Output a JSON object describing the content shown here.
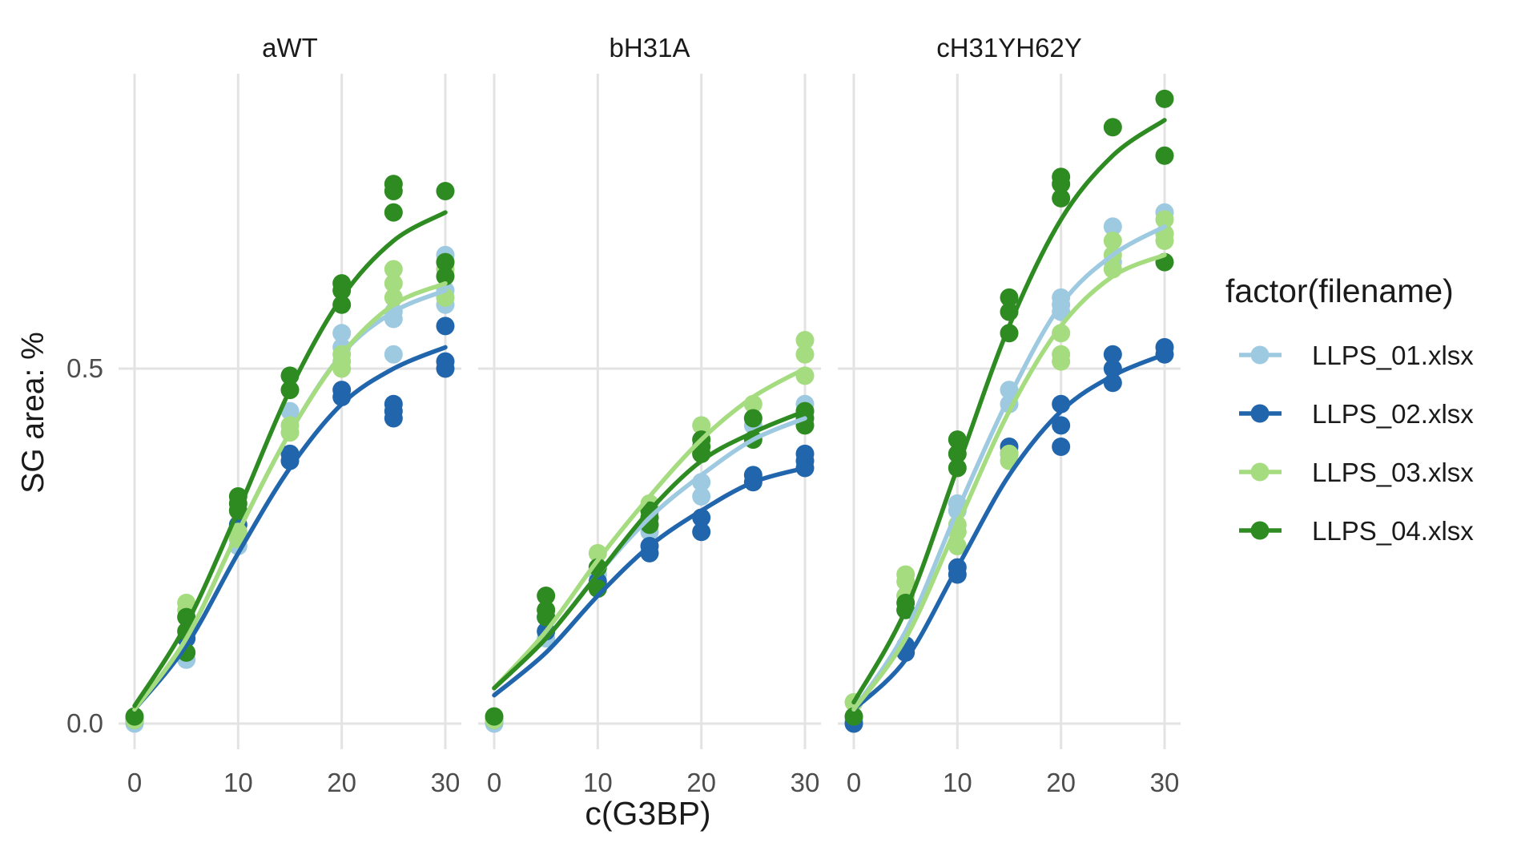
{
  "chart_data": {
    "type": "scatter",
    "facet_titles": [
      "aWT",
      "bH31A",
      "cH31YH62Y"
    ],
    "xlabel": "c(G3BP)",
    "ylabel": "SG area: %",
    "xlim": [
      0,
      30
    ],
    "ylim": [
      0,
      0.88
    ],
    "x_ticks": [
      0,
      10,
      20,
      30
    ],
    "x_tick_labels": [
      "0",
      "10",
      "20",
      "30"
    ],
    "y_ticks": [
      0,
      0.5
    ],
    "y_tick_labels": [
      "0.0",
      "0.5"
    ],
    "grid": true,
    "legend_title": "factor(filename)",
    "legend_position": "right",
    "series": [
      {
        "name": "LLPS_01.xlsx",
        "color": "#9ecae1"
      },
      {
        "name": "LLPS_02.xlsx",
        "color": "#2166ac"
      },
      {
        "name": "LLPS_03.xlsx",
        "color": "#a6dc80"
      },
      {
        "name": "LLPS_04.xlsx",
        "color": "#2e8b22"
      }
    ],
    "panels": [
      {
        "title": "aWT",
        "points": [
          [
            [
              0,
              0
            ],
            [
              0,
              0.005
            ],
            [
              5,
              0.09
            ],
            [
              5,
              0.12
            ],
            [
              10,
              0.25
            ],
            [
              10,
              0.27
            ],
            [
              15,
              0.38
            ],
            [
              15,
              0.44
            ],
            [
              20,
              0.53
            ],
            [
              20,
              0.55
            ],
            [
              25,
              0.52
            ],
            [
              25,
              0.57
            ],
            [
              25,
              0.58
            ],
            [
              30,
              0.59
            ],
            [
              30,
              0.61
            ],
            [
              30,
              0.66
            ]
          ],
          [
            [
              0,
              0.005
            ],
            [
              5,
              0.12
            ],
            [
              10,
              0.28
            ],
            [
              15,
              0.37
            ],
            [
              15,
              0.38
            ],
            [
              20,
              0.46
            ],
            [
              20,
              0.47
            ],
            [
              25,
              0.43
            ],
            [
              25,
              0.44
            ],
            [
              25,
              0.45
            ],
            [
              30,
              0.5
            ],
            [
              30,
              0.51
            ],
            [
              30,
              0.56
            ]
          ],
          [
            [
              0,
              0.005
            ],
            [
              5,
              0.16
            ],
            [
              5,
              0.17
            ],
            [
              10,
              0.26
            ],
            [
              10,
              0.27
            ],
            [
              15,
              0.41
            ],
            [
              15,
              0.42
            ],
            [
              20,
              0.5
            ],
            [
              20,
              0.51
            ],
            [
              20,
              0.52
            ],
            [
              25,
              0.6
            ],
            [
              25,
              0.62
            ],
            [
              25,
              0.64
            ],
            [
              30,
              0.6
            ],
            [
              30,
              0.64
            ],
            [
              30,
              0.65
            ]
          ],
          [
            [
              0,
              0.01
            ],
            [
              5,
              0.1
            ],
            [
              5,
              0.13
            ],
            [
              5,
              0.15
            ],
            [
              10,
              0.3
            ],
            [
              10,
              0.31
            ],
            [
              10,
              0.32
            ],
            [
              15,
              0.47
            ],
            [
              15,
              0.49
            ],
            [
              20,
              0.59
            ],
            [
              20,
              0.61
            ],
            [
              20,
              0.62
            ],
            [
              25,
              0.72
            ],
            [
              25,
              0.75
            ],
            [
              25,
              0.76
            ],
            [
              30,
              0.63
            ],
            [
              30,
              0.65
            ],
            [
              30,
              0.75
            ]
          ]
        ],
        "curves": [
          [
            [
              0,
              0.02
            ],
            [
              5,
              0.12
            ],
            [
              10,
              0.27
            ],
            [
              15,
              0.41
            ],
            [
              20,
              0.52
            ],
            [
              25,
              0.58
            ],
            [
              30,
              0.61
            ]
          ],
          [
            [
              0,
              0.02
            ],
            [
              5,
              0.11
            ],
            [
              10,
              0.24
            ],
            [
              15,
              0.36
            ],
            [
              20,
              0.45
            ],
            [
              25,
              0.5
            ],
            [
              30,
              0.53
            ]
          ],
          [
            [
              0,
              0.02
            ],
            [
              5,
              0.12
            ],
            [
              10,
              0.27
            ],
            [
              15,
              0.41
            ],
            [
              20,
              0.52
            ],
            [
              25,
              0.59
            ],
            [
              30,
              0.62
            ]
          ],
          [
            [
              0,
              0.025
            ],
            [
              5,
              0.14
            ],
            [
              10,
              0.3
            ],
            [
              15,
              0.47
            ],
            [
              20,
              0.6
            ],
            [
              25,
              0.68
            ],
            [
              30,
              0.72
            ]
          ]
        ]
      },
      {
        "title": "bH31A",
        "points": [
          [
            [
              0,
              0
            ],
            [
              5,
              0.12
            ],
            [
              10,
              0.21
            ],
            [
              15,
              0.27
            ],
            [
              20,
              0.32
            ],
            [
              20,
              0.34
            ],
            [
              25,
              0.42
            ],
            [
              25,
              0.43
            ],
            [
              30,
              0.44
            ],
            [
              30,
              0.45
            ]
          ],
          [
            [
              0,
              0.005
            ],
            [
              5,
              0.13
            ],
            [
              5,
              0.15
            ],
            [
              10,
              0.2
            ],
            [
              15,
              0.24
            ],
            [
              15,
              0.25
            ],
            [
              20,
              0.27
            ],
            [
              20,
              0.29
            ],
            [
              25,
              0.34
            ],
            [
              25,
              0.35
            ],
            [
              30,
              0.36
            ],
            [
              30,
              0.37
            ],
            [
              30,
              0.38
            ]
          ],
          [
            [
              0,
              0.005
            ],
            [
              5,
              0.16
            ],
            [
              10,
              0.24
            ],
            [
              15,
              0.3
            ],
            [
              15,
              0.31
            ],
            [
              20,
              0.38
            ],
            [
              20,
              0.42
            ],
            [
              25,
              0.45
            ],
            [
              30,
              0.49
            ],
            [
              30,
              0.52
            ],
            [
              30,
              0.54
            ]
          ],
          [
            [
              0,
              0.01
            ],
            [
              5,
              0.15
            ],
            [
              5,
              0.16
            ],
            [
              5,
              0.18
            ],
            [
              10,
              0.19
            ],
            [
              10,
              0.22
            ],
            [
              15,
              0.28
            ],
            [
              15,
              0.29
            ],
            [
              15,
              0.3
            ],
            [
              20,
              0.38
            ],
            [
              20,
              0.39
            ],
            [
              20,
              0.4
            ],
            [
              25,
              0.4
            ],
            [
              25,
              0.43
            ],
            [
              30,
              0.42
            ],
            [
              30,
              0.43
            ],
            [
              30,
              0.44
            ]
          ]
        ],
        "curves": [
          [
            [
              0,
              0.05
            ],
            [
              5,
              0.12
            ],
            [
              10,
              0.21
            ],
            [
              15,
              0.29
            ],
            [
              20,
              0.35
            ],
            [
              25,
              0.4
            ],
            [
              30,
              0.43
            ]
          ],
          [
            [
              0,
              0.04
            ],
            [
              5,
              0.1
            ],
            [
              10,
              0.18
            ],
            [
              15,
              0.25
            ],
            [
              20,
              0.3
            ],
            [
              25,
              0.34
            ],
            [
              30,
              0.36
            ]
          ],
          [
            [
              0,
              0.05
            ],
            [
              5,
              0.13
            ],
            [
              10,
              0.23
            ],
            [
              15,
              0.32
            ],
            [
              20,
              0.4
            ],
            [
              25,
              0.46
            ],
            [
              30,
              0.5
            ]
          ],
          [
            [
              0,
              0.05
            ],
            [
              5,
              0.12
            ],
            [
              10,
              0.21
            ],
            [
              15,
              0.3
            ],
            [
              20,
              0.37
            ],
            [
              25,
              0.41
            ],
            [
              30,
              0.44
            ]
          ]
        ]
      },
      {
        "title": "cH31YH62Y",
        "points": [
          [
            [
              0,
              0
            ],
            [
              0,
              0.005
            ],
            [
              5,
              0.16
            ],
            [
              5,
              0.18
            ],
            [
              10,
              0.3
            ],
            [
              10,
              0.31
            ],
            [
              15,
              0.45
            ],
            [
              15,
              0.47
            ],
            [
              20,
              0.58
            ],
            [
              20,
              0.59
            ],
            [
              20,
              0.6
            ],
            [
              25,
              0.65
            ],
            [
              25,
              0.7
            ],
            [
              30,
              0.69
            ],
            [
              30,
              0.72
            ]
          ],
          [
            [
              0,
              0
            ],
            [
              5,
              0.1
            ],
            [
              5,
              0.11
            ],
            [
              10,
              0.21
            ],
            [
              10,
              0.22
            ],
            [
              15,
              0.38
            ],
            [
              15,
              0.39
            ],
            [
              20,
              0.39
            ],
            [
              20,
              0.42
            ],
            [
              20,
              0.45
            ],
            [
              25,
              0.48
            ],
            [
              25,
              0.5
            ],
            [
              25,
              0.52
            ],
            [
              30,
              0.52
            ],
            [
              30,
              0.53
            ]
          ],
          [
            [
              0,
              0.03
            ],
            [
              5,
              0.18
            ],
            [
              5,
              0.2
            ],
            [
              5,
              0.21
            ],
            [
              10,
              0.25
            ],
            [
              10,
              0.27
            ],
            [
              10,
              0.28
            ],
            [
              15,
              0.37
            ],
            [
              15,
              0.38
            ],
            [
              20,
              0.51
            ],
            [
              20,
              0.52
            ],
            [
              20,
              0.55
            ],
            [
              25,
              0.64
            ],
            [
              25,
              0.66
            ],
            [
              25,
              0.68
            ],
            [
              30,
              0.68
            ],
            [
              30,
              0.69
            ],
            [
              30,
              0.71
            ]
          ],
          [
            [
              0,
              0.01
            ],
            [
              5,
              0.16
            ],
            [
              5,
              0.17
            ],
            [
              10,
              0.36
            ],
            [
              10,
              0.38
            ],
            [
              10,
              0.4
            ],
            [
              15,
              0.55
            ],
            [
              15,
              0.58
            ],
            [
              15,
              0.6
            ],
            [
              20,
              0.74
            ],
            [
              20,
              0.76
            ],
            [
              20,
              0.77
            ],
            [
              25,
              0.84
            ],
            [
              30,
              0.8
            ],
            [
              30,
              0.88
            ],
            [
              30,
              0.65
            ]
          ]
        ],
        "curves": [
          [
            [
              0,
              0.02
            ],
            [
              5,
              0.13
            ],
            [
              10,
              0.3
            ],
            [
              15,
              0.46
            ],
            [
              20,
              0.59
            ],
            [
              25,
              0.66
            ],
            [
              30,
              0.7
            ]
          ],
          [
            [
              0,
              0.02
            ],
            [
              5,
              0.09
            ],
            [
              10,
              0.22
            ],
            [
              15,
              0.35
            ],
            [
              20,
              0.44
            ],
            [
              25,
              0.49
            ],
            [
              30,
              0.52
            ]
          ],
          [
            [
              0,
              0.02
            ],
            [
              5,
              0.12
            ],
            [
              10,
              0.28
            ],
            [
              15,
              0.44
            ],
            [
              20,
              0.56
            ],
            [
              25,
              0.63
            ],
            [
              30,
              0.66
            ]
          ],
          [
            [
              0,
              0.03
            ],
            [
              5,
              0.16
            ],
            [
              10,
              0.36
            ],
            [
              15,
              0.56
            ],
            [
              20,
              0.71
            ],
            [
              25,
              0.8
            ],
            [
              30,
              0.85
            ]
          ]
        ]
      }
    ]
  }
}
